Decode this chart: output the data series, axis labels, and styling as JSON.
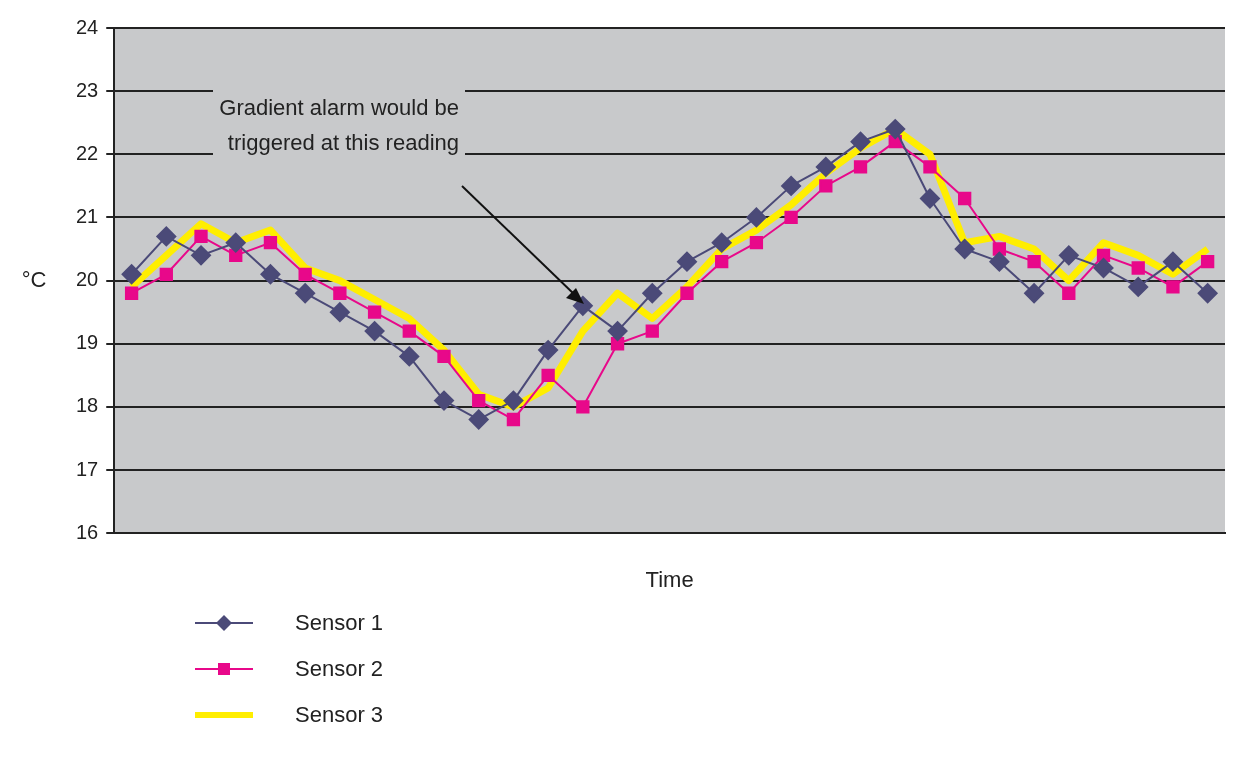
{
  "chart_data": {
    "type": "line",
    "xlabel": "Time",
    "ylabel": "°C",
    "categories": [
      null,
      null,
      null,
      null,
      null,
      null,
      null,
      null,
      null,
      null,
      null,
      null,
      null,
      null,
      null,
      null,
      null,
      null,
      null,
      null,
      null,
      null,
      null,
      null,
      null,
      null,
      null,
      null,
      null,
      null,
      null,
      null
    ],
    "series": [
      {
        "name": "Sensor 1",
        "color": "#4b4a78",
        "marker": "diamond",
        "values": [
          20.1,
          20.7,
          20.4,
          20.6,
          20.1,
          19.8,
          19.5,
          19.2,
          18.8,
          18.1,
          17.8,
          18.1,
          18.9,
          19.6,
          19.2,
          19.8,
          20.3,
          20.6,
          21.0,
          21.5,
          21.8,
          22.2,
          22.4,
          21.3,
          20.5,
          20.3,
          19.8,
          20.4,
          20.2,
          19.9,
          20.3,
          19.8
        ]
      },
      {
        "name": "Sensor 2",
        "color": "#e8088a",
        "marker": "square",
        "values": [
          19.8,
          20.1,
          20.7,
          20.4,
          20.6,
          20.1,
          19.8,
          19.5,
          19.2,
          18.8,
          18.1,
          17.8,
          18.5,
          18.0,
          19.0,
          19.2,
          19.8,
          20.3,
          20.6,
          21.0,
          21.5,
          21.8,
          22.2,
          21.8,
          21.3,
          20.5,
          20.3,
          19.8,
          20.4,
          20.2,
          19.9,
          20.3
        ]
      },
      {
        "name": "Sensor 3",
        "color": "#ffee00",
        "marker": "none",
        "values": [
          19.9,
          20.4,
          20.9,
          20.6,
          20.8,
          20.2,
          20.0,
          19.7,
          19.4,
          18.9,
          18.2,
          18.0,
          18.3,
          19.2,
          19.8,
          19.4,
          19.9,
          20.5,
          20.8,
          21.2,
          21.7,
          22.1,
          22.4,
          22.0,
          20.6,
          20.7,
          20.5,
          20.0,
          20.6,
          20.4,
          20.1,
          20.5
        ]
      }
    ],
    "ylim": [
      16,
      24
    ],
    "yticks": [
      16,
      17,
      18,
      19,
      20,
      21,
      22,
      23,
      24
    ],
    "grid": "y",
    "legend": "bottom left",
    "annotations": [
      "Gradient alarm would be triggered at this reading"
    ]
  }
}
